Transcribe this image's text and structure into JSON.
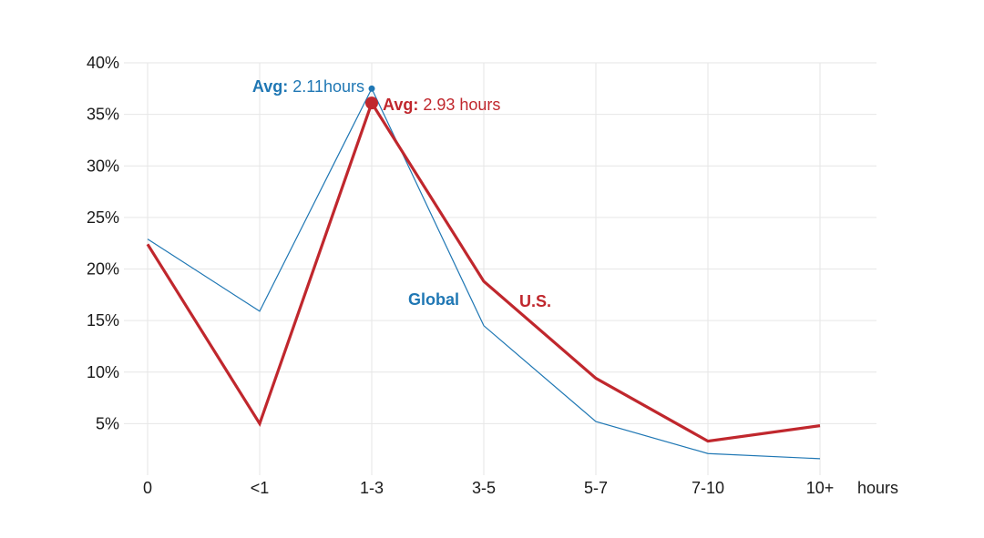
{
  "chart_data": {
    "type": "line",
    "categories": [
      "0",
      "<1",
      "1-3",
      "3-5",
      "5-7",
      "7-10",
      "10+"
    ],
    "x_unit_label": "hours",
    "yticks": [
      "5%",
      "10%",
      "15%",
      "20%",
      "25%",
      "30%",
      "35%",
      "40%"
    ],
    "ylim": [
      0,
      40
    ],
    "grid": true,
    "series": [
      {
        "name": "Global",
        "color": "#1f77b4",
        "values": [
          22.9,
          15.9,
          37.5,
          14.5,
          5.2,
          2.1,
          1.6
        ]
      },
      {
        "name": "U.S.",
        "color": "#c0272d",
        "values": [
          22.4,
          5.0,
          36.1,
          18.8,
          9.4,
          3.3,
          4.8
        ]
      }
    ],
    "annotations": {
      "global_avg": {
        "label": "Avg:",
        "value": "2.11hours"
      },
      "us_avg": {
        "label": "Avg:",
        "value": "2.93 hours"
      }
    }
  }
}
